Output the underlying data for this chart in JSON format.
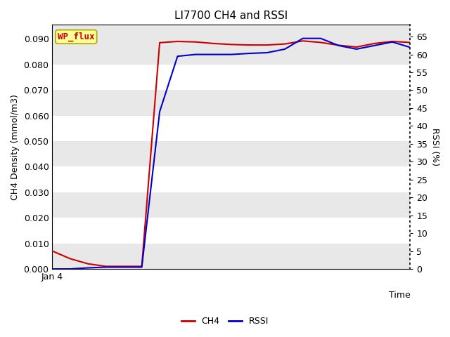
{
  "title": "LI7700 CH4 and RSSI",
  "xlabel": "Time",
  "ylabel_left": "CH4 Density (mmol/m3)",
  "ylabel_right": "RSSI (%)",
  "x_tick_label": "Jan 4",
  "legend_label": "WP_flux",
  "ylim_left": [
    0,
    0.0955
  ],
  "ylim_right": [
    0,
    68.3
  ],
  "yticks_left": [
    0.0,
    0.01,
    0.02,
    0.03,
    0.04,
    0.05,
    0.06,
    0.07,
    0.08,
    0.09
  ],
  "yticks_right": [
    0,
    5,
    10,
    15,
    20,
    25,
    30,
    35,
    40,
    45,
    50,
    55,
    60,
    65
  ],
  "ch4_color": "#cc0000",
  "rssi_color": "#0000cc",
  "bg_light": "#e8e8e8",
  "bg_dark": "#d4d4d4",
  "ch4_x": [
    0,
    1,
    2,
    3,
    4,
    5,
    6,
    7,
    8,
    9,
    10,
    11,
    12,
    13,
    14,
    15,
    16,
    17,
    18,
    19,
    20
  ],
  "ch4_y": [
    0.007,
    0.004,
    0.002,
    0.001,
    0.001,
    0.001,
    0.0885,
    0.089,
    0.0888,
    0.0882,
    0.0878,
    0.0876,
    0.0876,
    0.088,
    0.0892,
    0.0886,
    0.0875,
    0.0868,
    0.0882,
    0.089,
    0.0886
  ],
  "rssi_x": [
    0,
    1,
    2,
    3,
    4,
    5,
    6,
    7,
    8,
    9,
    10,
    11,
    12,
    13,
    14,
    15,
    16,
    17,
    18,
    19,
    20
  ],
  "rssi_y": [
    0.0,
    0.0,
    0.3,
    0.5,
    0.5,
    0.5,
    44.0,
    59.5,
    60.0,
    60.0,
    60.0,
    60.3,
    60.5,
    61.5,
    64.5,
    64.5,
    62.5,
    61.5,
    62.5,
    63.5,
    62.0
  ],
  "title_fontsize": 11,
  "tick_fontsize": 9,
  "label_fontsize": 9,
  "legend_fontsize": 9,
  "line_width": 1.5,
  "wp_box_color": "#ffff99",
  "wp_box_edge": "#aaaa00",
  "wp_text_color": "#cc0000"
}
